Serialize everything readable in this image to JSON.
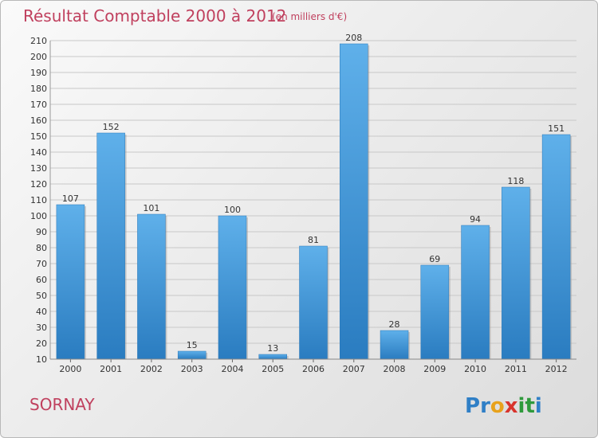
{
  "chart_data": {
    "type": "bar",
    "title": "Résultat Comptable 2000 à 2012",
    "subtitle": "(en milliers d'€)",
    "categories": [
      "2000",
      "2001",
      "2002",
      "2003",
      "2004",
      "2005",
      "2006",
      "2007",
      "2008",
      "2009",
      "2010",
      "2011",
      "2012"
    ],
    "values": [
      107,
      152,
      101,
      15,
      100,
      13,
      81,
      208,
      28,
      69,
      94,
      118,
      151
    ],
    "ylim": [
      10,
      210
    ],
    "yticks": [
      10,
      20,
      30,
      40,
      50,
      60,
      70,
      80,
      90,
      100,
      110,
      120,
      130,
      140,
      150,
      160,
      170,
      180,
      190,
      200,
      210
    ],
    "grid": true,
    "xlabel": "",
    "ylabel": "",
    "bar_color": "#3a8fd6"
  },
  "commune": "SORNAY",
  "brand": {
    "letters": [
      "P",
      "r",
      "o",
      "x",
      "i",
      "t",
      "i"
    ],
    "colors": [
      "#2f7fc6",
      "#2f7fc6",
      "#e8a21c",
      "#d8342c",
      "#2f9a3c",
      "#2f9a3c",
      "#2f7fc6"
    ]
  }
}
